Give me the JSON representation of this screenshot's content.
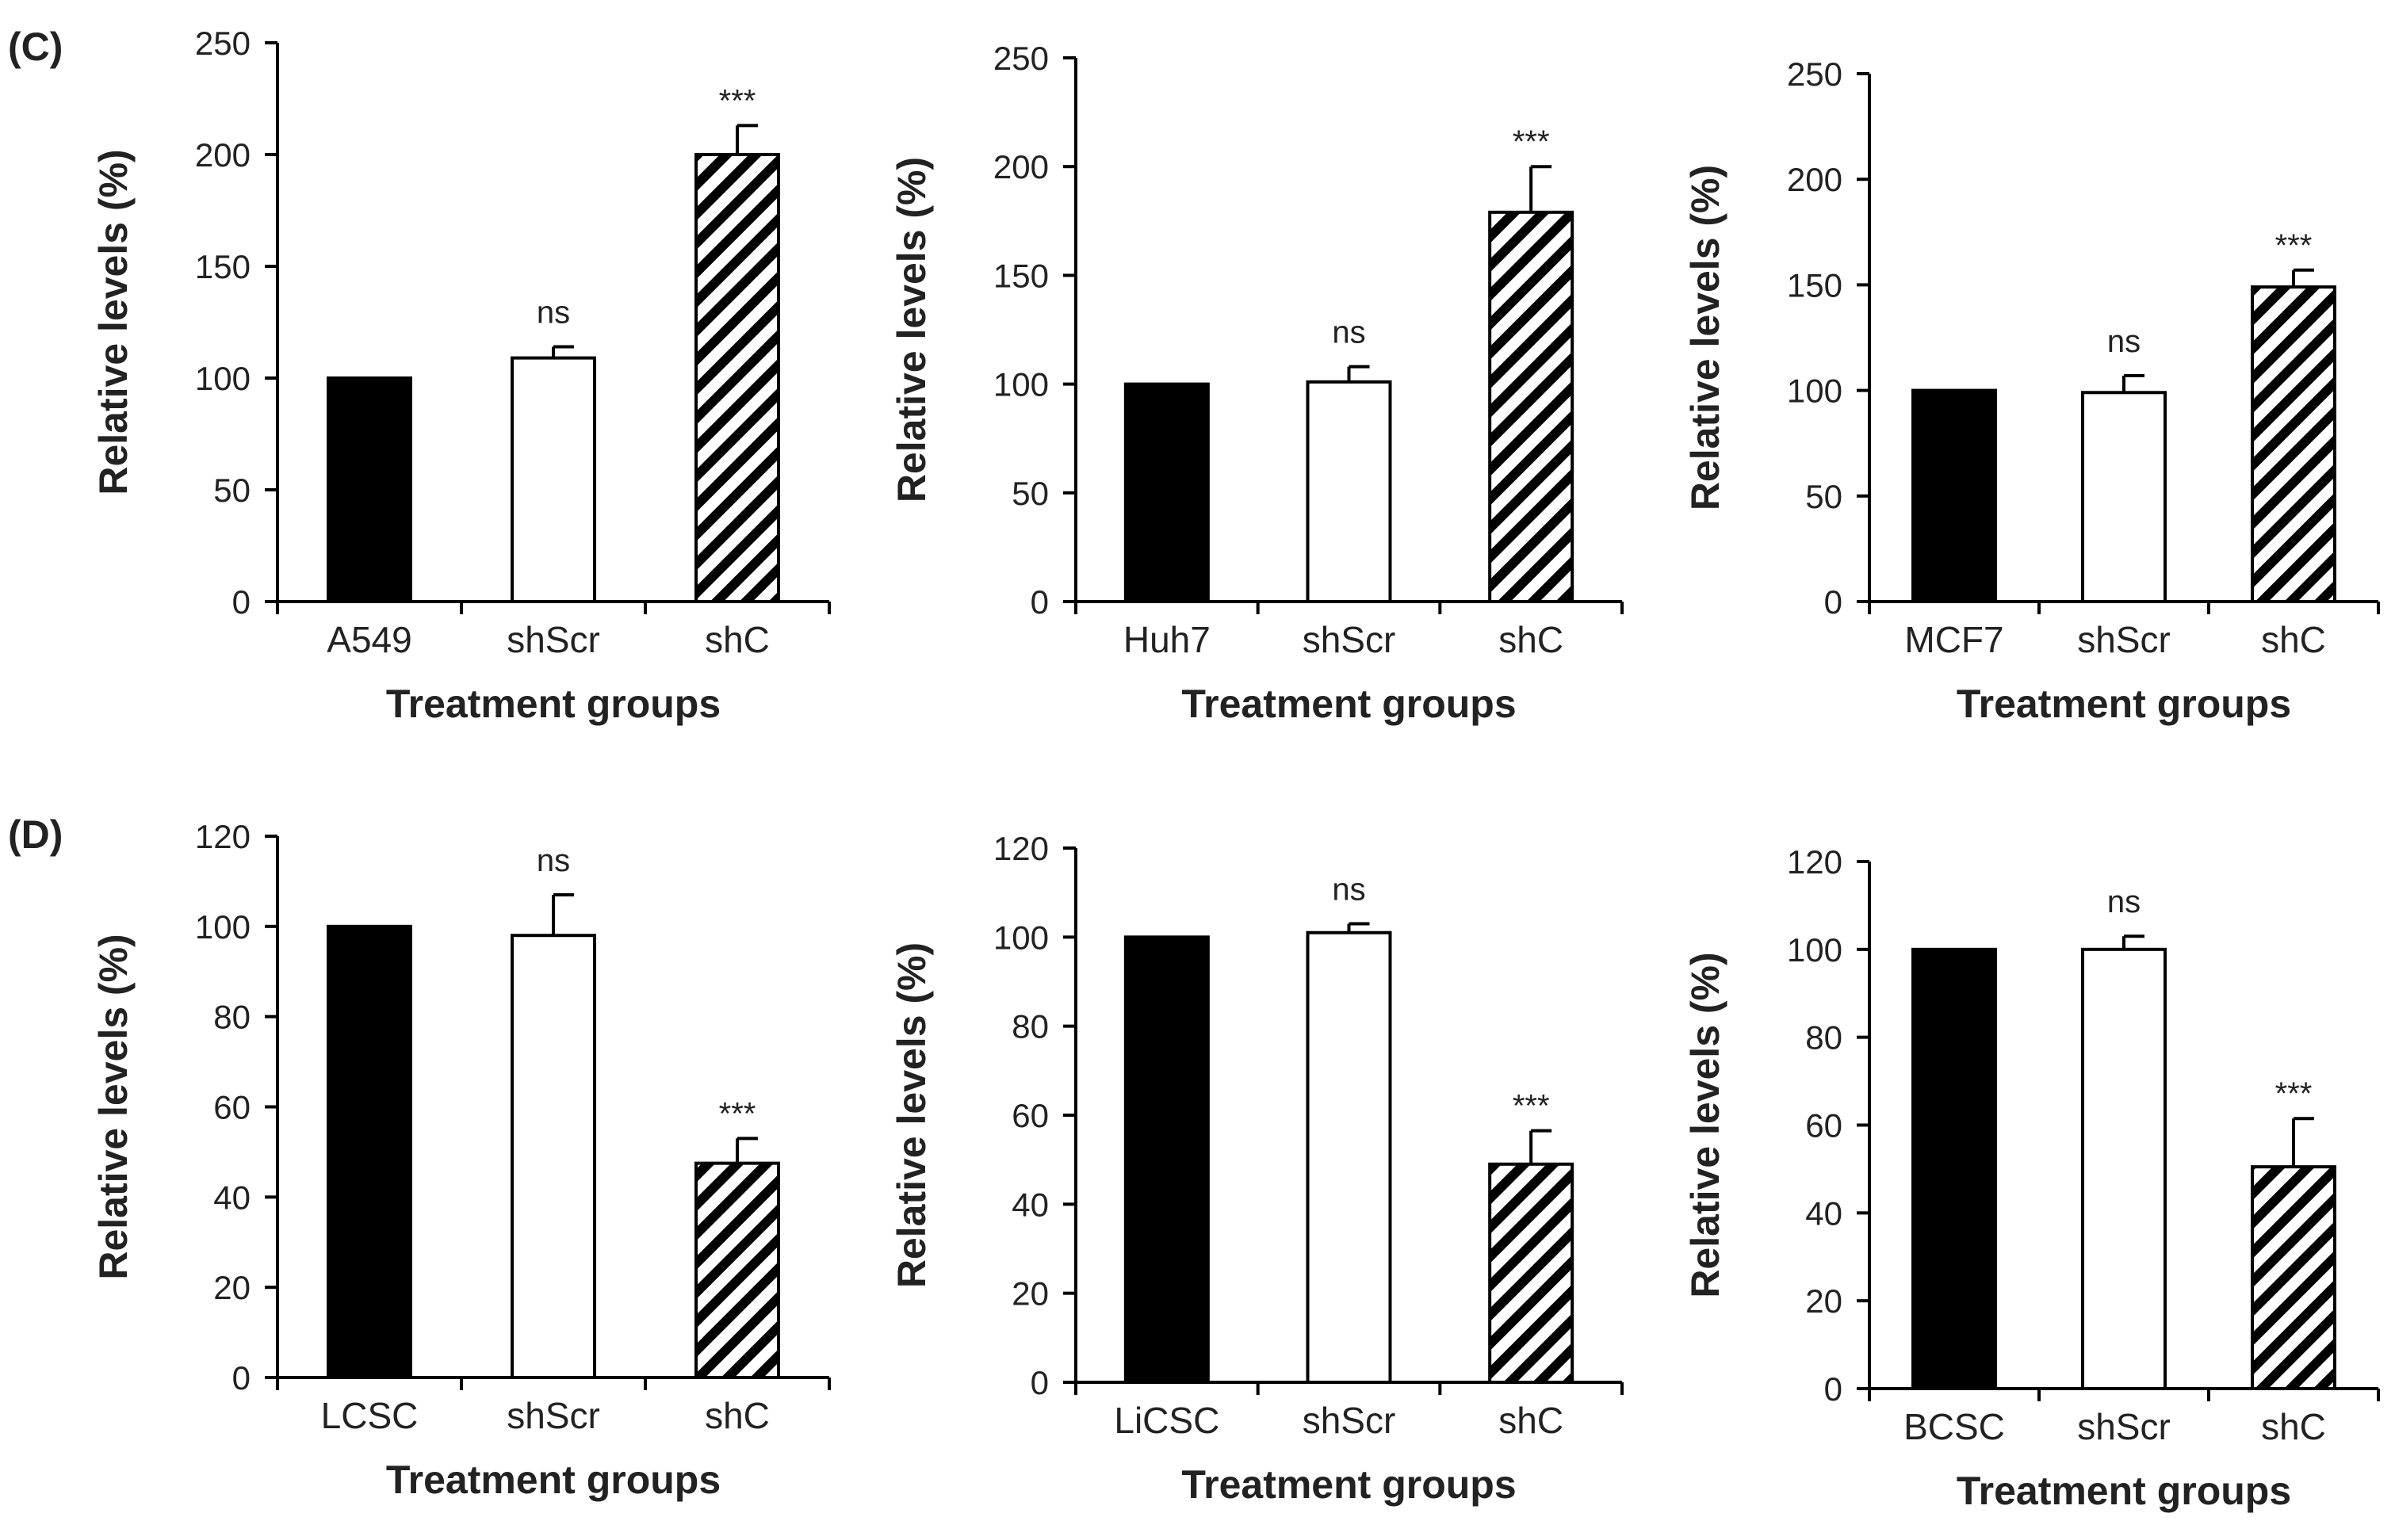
{
  "panels": [
    {
      "label": "(C)"
    },
    {
      "label": "(D)"
    }
  ],
  "colors": {
    "bar_dark": "#000000",
    "bar_light": "#ffffff",
    "axis": "#000000"
  },
  "chart_data": [
    {
      "type": "bar",
      "panel": "(C)",
      "categories": [
        "A549",
        "shScr",
        "shC"
      ],
      "values": [
        100,
        109,
        200
      ],
      "errors": [
        0,
        5,
        13
      ],
      "significance": [
        "",
        "ns",
        "***"
      ],
      "fills": [
        "solid",
        "white",
        "hatched"
      ],
      "ylabel": "Relative levels (%)",
      "xlabel": "Treatment groups",
      "ylim": [
        0,
        250
      ],
      "yticks": [
        0,
        50,
        100,
        150,
        200,
        250
      ]
    },
    {
      "type": "bar",
      "panel": "(C)",
      "categories": [
        "Huh7",
        "shScr",
        "shC"
      ],
      "values": [
        100,
        101,
        179
      ],
      "errors": [
        0,
        7,
        21
      ],
      "significance": [
        "",
        "ns",
        "***"
      ],
      "fills": [
        "solid",
        "white",
        "hatched"
      ],
      "ylabel": "Relative levels (%)",
      "xlabel": "Treatment groups",
      "ylim": [
        0,
        250
      ],
      "yticks": [
        0,
        50,
        100,
        150,
        200,
        250
      ]
    },
    {
      "type": "bar",
      "panel": "(C)",
      "categories": [
        "MCF7",
        "shScr",
        "shC"
      ],
      "values": [
        100,
        99,
        149
      ],
      "errors": [
        0,
        8,
        8
      ],
      "significance": [
        "",
        "ns",
        "***"
      ],
      "fills": [
        "solid",
        "white",
        "hatched"
      ],
      "ylabel": "Relative levels (%)",
      "xlabel": "Treatment groups",
      "ylim": [
        0,
        250
      ],
      "yticks": [
        0,
        50,
        100,
        150,
        200,
        250
      ]
    },
    {
      "type": "bar",
      "panel": "(D)",
      "categories": [
        "LCSC",
        "shScr",
        "shC"
      ],
      "values": [
        100,
        98,
        47.5
      ],
      "errors": [
        0,
        9,
        5.5
      ],
      "significance": [
        "",
        "ns",
        "***"
      ],
      "fills": [
        "solid",
        "white",
        "hatched"
      ],
      "ylabel": "Relative levels (%)",
      "xlabel": "Treatment groups",
      "ylim": [
        0,
        120
      ],
      "yticks": [
        0,
        20,
        40,
        60,
        80,
        100,
        120
      ]
    },
    {
      "type": "bar",
      "panel": "(D)",
      "categories": [
        "LiCSC",
        "shScr",
        "shC"
      ],
      "values": [
        100,
        101,
        49
      ],
      "errors": [
        0,
        2,
        7.5
      ],
      "significance": [
        "",
        "ns",
        "***"
      ],
      "fills": [
        "solid",
        "white",
        "hatched"
      ],
      "ylabel": "Relative levels (%)",
      "xlabel": "Treatment groups",
      "ylim": [
        0,
        120
      ],
      "yticks": [
        0,
        20,
        40,
        60,
        80,
        100,
        120
      ]
    },
    {
      "type": "bar",
      "panel": "(D)",
      "categories": [
        "BCSC",
        "shScr",
        "shC"
      ],
      "values": [
        100,
        100,
        50.5
      ],
      "errors": [
        0,
        3,
        11
      ],
      "significance": [
        "",
        "ns",
        "***"
      ],
      "fills": [
        "solid",
        "white",
        "hatched"
      ],
      "ylabel": "Relative levels (%)",
      "xlabel": "Treatment groups",
      "ylim": [
        0,
        120
      ],
      "yticks": [
        0,
        20,
        40,
        60,
        80,
        100,
        120
      ]
    }
  ]
}
